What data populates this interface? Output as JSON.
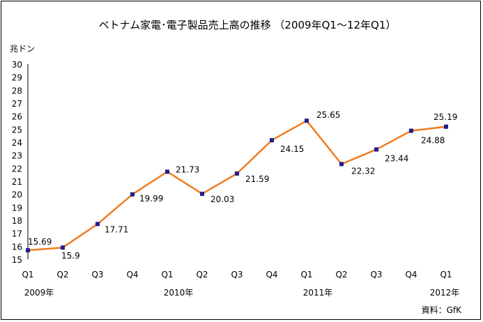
{
  "chart_data": {
    "type": "line",
    "title": "ベトナム家電･電子製品売上高の推移 （2009年Q1～12年Q1）",
    "ylabel": "兆ドン",
    "ylim": [
      15,
      30
    ],
    "ytick_step": 1,
    "yticks": [
      "15",
      "16",
      "17",
      "18",
      "19",
      "20",
      "21",
      "22",
      "23",
      "24",
      "25",
      "26",
      "27",
      "28",
      "29",
      "30"
    ],
    "categories": [
      "Q1",
      "Q2",
      "Q3",
      "Q4",
      "Q1",
      "Q2",
      "Q3",
      "Q4",
      "Q1",
      "Q2",
      "Q3",
      "Q4",
      "Q1"
    ],
    "years": [
      {
        "label": "2009年",
        "at": 0
      },
      {
        "label": "2010年",
        "at": 4
      },
      {
        "label": "2011年",
        "at": 8
      },
      {
        "label": "2012年",
        "at": 12
      }
    ],
    "series": [
      {
        "values": [
          15.69,
          15.9,
          17.71,
          19.99,
          21.73,
          20.03,
          21.59,
          24.15,
          25.65,
          22.32,
          23.44,
          24.88,
          25.19
        ],
        "labels": [
          "15.69",
          "15.9",
          "17.71",
          "19.99",
          "21.73",
          "20.03",
          "21.59",
          "24.15",
          "25.65",
          "22.32",
          "23.44",
          "24.88",
          "25.19"
        ],
        "color": "#f07b1f",
        "marker_color": "#1f1f8f"
      }
    ],
    "source": "資料：GfK",
    "grid": false,
    "legend": "none"
  }
}
